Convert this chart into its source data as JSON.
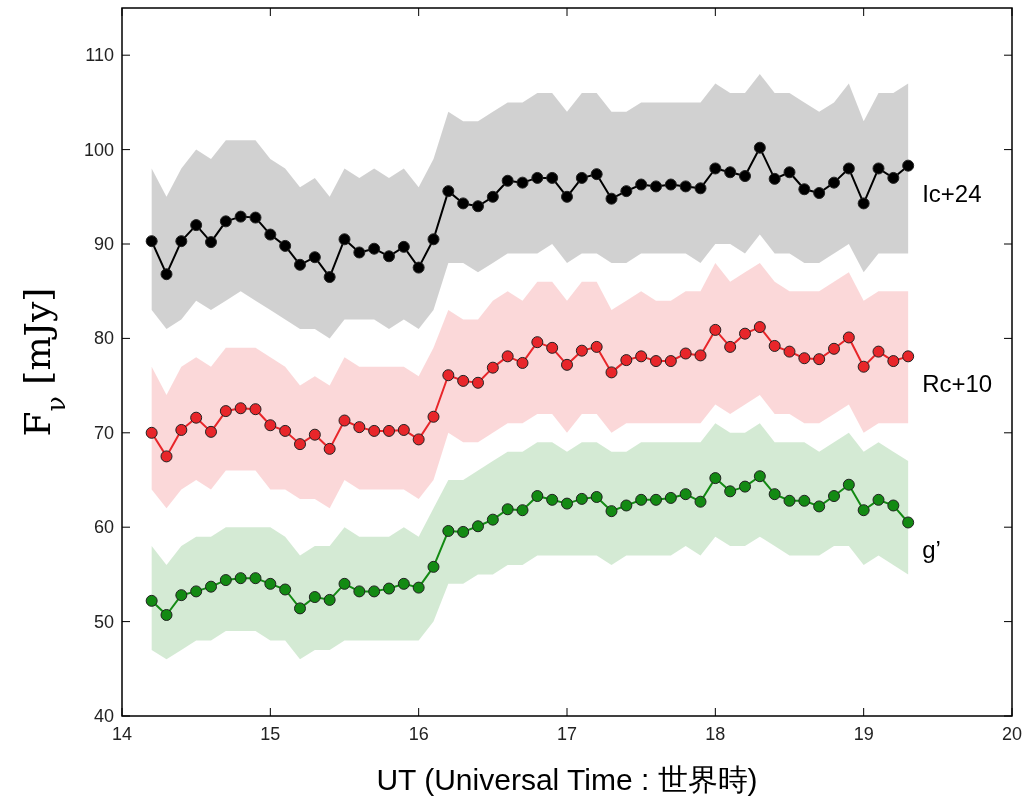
{
  "chart_data": {
    "type": "line",
    "xlabel": "UT (Universal Time : 世界時)",
    "ylabel": "F$_{ν}$ [mJy]",
    "x": [
      14.2,
      14.3,
      14.4,
      14.5,
      14.6,
      14.7,
      14.8,
      14.9,
      15.0,
      15.1,
      15.2,
      15.3,
      15.4,
      15.5,
      15.6,
      15.7,
      15.8,
      15.9,
      16.0,
      16.1,
      16.2,
      16.3,
      16.4,
      16.5,
      16.6,
      16.7,
      16.8,
      16.9,
      17.0,
      17.1,
      17.2,
      17.3,
      17.4,
      17.5,
      17.6,
      17.7,
      17.8,
      17.9,
      18.0,
      18.1,
      18.2,
      18.3,
      18.4,
      18.5,
      18.6,
      18.7,
      18.8,
      18.9,
      19.0,
      19.1,
      19.2,
      19.3
    ],
    "series": [
      {
        "name": "Ic+24",
        "color": "#000000",
        "values": [
          90.3,
          86.8,
          90.3,
          92.0,
          90.2,
          92.4,
          92.9,
          92.8,
          91.0,
          89.8,
          87.8,
          88.6,
          86.5,
          90.5,
          89.1,
          89.5,
          88.7,
          89.7,
          87.5,
          90.5,
          95.6,
          94.3,
          94.0,
          95.0,
          96.7,
          96.5,
          97.0,
          97.0,
          95.0,
          97.0,
          97.4,
          94.8,
          95.6,
          96.3,
          96.1,
          96.3,
          96.1,
          95.9,
          98.0,
          97.6,
          97.2,
          100.2,
          96.9,
          97.6,
          95.8,
          95.4,
          96.5,
          98.0,
          94.3,
          98.0,
          97.0,
          98.3
        ],
        "lower": [
          83,
          81,
          82,
          84,
          83,
          84,
          85,
          84,
          83,
          82,
          81,
          81,
          80,
          82,
          82,
          82,
          81,
          82,
          81,
          83,
          88,
          88,
          87,
          88,
          89,
          89,
          89,
          90,
          88,
          89,
          89,
          88,
          88,
          89,
          89,
          89,
          89,
          88,
          90,
          90,
          89,
          91,
          89,
          89,
          88,
          88,
          89,
          90,
          87,
          89,
          89,
          89
        ],
        "upper": [
          98,
          95,
          98,
          100,
          99,
          101,
          101,
          101,
          99,
          98,
          96,
          97,
          95,
          98,
          97,
          98,
          97,
          98,
          96,
          99,
          104,
          103,
          103,
          104,
          105,
          105,
          106,
          106,
          104,
          106,
          106,
          104,
          104,
          105,
          105,
          105,
          105,
          105,
          107,
          106,
          106,
          108,
          106,
          106,
          105,
          104,
          105,
          107,
          103,
          106,
          106,
          107
        ]
      },
      {
        "name": "Rc+10",
        "color": "#e8262a",
        "values": [
          70.0,
          67.5,
          70.3,
          71.6,
          70.1,
          72.3,
          72.6,
          72.5,
          70.8,
          70.2,
          68.8,
          69.8,
          68.3,
          71.3,
          70.6,
          70.2,
          70.2,
          70.3,
          69.3,
          71.7,
          76.1,
          75.5,
          75.3,
          76.9,
          78.1,
          77.4,
          79.6,
          79.0,
          77.2,
          78.7,
          79.1,
          76.4,
          77.7,
          78.1,
          77.6,
          77.6,
          78.4,
          78.2,
          80.9,
          79.1,
          80.5,
          81.2,
          79.2,
          78.6,
          77.9,
          77.8,
          78.9,
          80.1,
          77.0,
          78.6,
          77.6,
          78.1
        ],
        "lower": [
          64,
          62,
          64,
          65,
          64,
          66,
          66,
          66,
          64,
          64,
          63,
          63,
          62,
          65,
          64,
          64,
          64,
          64,
          63,
          65,
          70,
          69,
          69,
          70,
          71,
          71,
          72,
          72,
          70,
          72,
          72,
          70,
          71,
          71,
          71,
          71,
          71,
          71,
          73,
          72,
          73,
          74,
          72,
          72,
          71,
          71,
          72,
          73,
          70,
          71,
          71,
          71
        ],
        "upper": [
          77,
          74,
          77,
          78,
          77,
          79,
          79,
          79,
          78,
          77,
          75,
          76,
          75,
          78,
          77,
          77,
          77,
          77,
          76,
          79,
          83,
          82,
          82,
          84,
          85,
          84,
          86,
          86,
          84,
          86,
          86,
          83,
          84,
          85,
          84,
          84,
          85,
          85,
          88,
          86,
          87,
          88,
          86,
          85,
          85,
          85,
          86,
          87,
          84,
          85,
          85,
          85
        ]
      },
      {
        "name": "g’",
        "color": "#138a13",
        "values": [
          52.2,
          50.7,
          52.8,
          53.2,
          53.7,
          54.4,
          54.6,
          54.6,
          54.0,
          53.4,
          51.4,
          52.6,
          52.3,
          54.0,
          53.2,
          53.2,
          53.5,
          54.0,
          53.6,
          55.8,
          59.6,
          59.5,
          60.1,
          60.8,
          61.9,
          61.8,
          63.3,
          62.9,
          62.5,
          63.0,
          63.2,
          61.7,
          62.3,
          62.9,
          62.9,
          63.1,
          63.5,
          62.7,
          65.2,
          63.8,
          64.3,
          65.4,
          63.5,
          62.8,
          62.8,
          62.2,
          63.3,
          64.5,
          61.8,
          62.9,
          62.3,
          60.5
        ],
        "lower": [
          47,
          46,
          47,
          48,
          48,
          49,
          49,
          49,
          48,
          48,
          46,
          47,
          47,
          48,
          48,
          48,
          48,
          48,
          48,
          50,
          54,
          54,
          55,
          55,
          56,
          56,
          57,
          57,
          57,
          57,
          57,
          56,
          57,
          57,
          57,
          57,
          58,
          57,
          59,
          58,
          58,
          59,
          58,
          57,
          57,
          57,
          58,
          58,
          56,
          57,
          56,
          55
        ],
        "upper": [
          58,
          56,
          58,
          59,
          59,
          60,
          60,
          60,
          60,
          59,
          57,
          58,
          58,
          60,
          59,
          59,
          59,
          60,
          59,
          62,
          65,
          65,
          66,
          67,
          68,
          68,
          69,
          69,
          68,
          69,
          69,
          68,
          68,
          69,
          69,
          69,
          69,
          69,
          71,
          70,
          70,
          71,
          69,
          69,
          69,
          68,
          69,
          70,
          68,
          69,
          68,
          67
        ]
      }
    ],
    "xlim": [
      14,
      20
    ],
    "xticks": [
      14,
      15,
      16,
      17,
      18,
      19,
      20
    ],
    "ylim": [
      40,
      115
    ],
    "yticks": [
      40,
      50,
      60,
      70,
      80,
      90,
      100,
      110
    ],
    "marker": "circle",
    "line_style": "solid",
    "grid": false,
    "legend": false
  }
}
